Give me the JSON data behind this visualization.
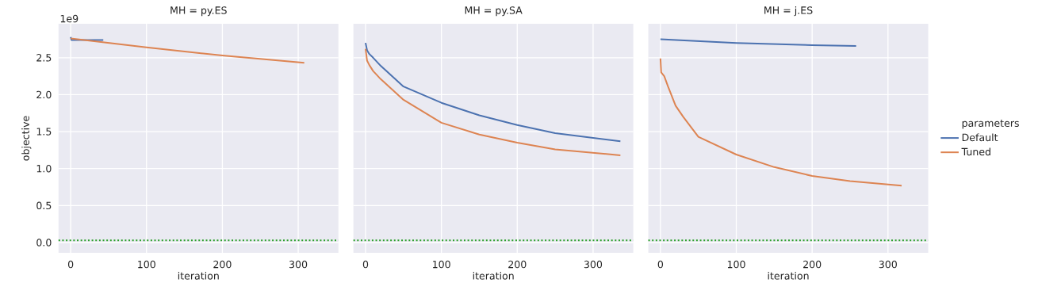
{
  "chart_data": [
    {
      "type": "line",
      "title": "MH  = py.ES",
      "xlabel": "iteration",
      "ylabel": "objective",
      "annotations": [
        "1e9"
      ],
      "grid": true,
      "legend": false,
      "xlim": [
        -16,
        353
      ],
      "xticks": [
        0,
        100,
        200,
        300
      ],
      "ylim": [
        -0.14,
        2.96
      ],
      "yticks": [
        {
          "value": 0,
          "label": "0.0"
        },
        {
          "value": 0.5,
          "label": "0.5"
        },
        {
          "value": 1,
          "label": "1.0"
        },
        {
          "value": 1.5,
          "label": "1.5"
        },
        {
          "value": 2,
          "label": "2.0"
        },
        {
          "value": 2.5,
          "label": "2.5"
        }
      ],
      "ref_lines": [
        {
          "axis": "y",
          "value": 0.03,
          "color": "#2ca02c",
          "line_style": "dotted"
        }
      ],
      "series": [
        {
          "color": "#4c72b0",
          "x": [
            0,
            1,
            43
          ],
          "values": [
            2.78,
            2.74,
            2.74
          ]
        },
        {
          "color": "#dd8452",
          "x": [
            0,
            100,
            200,
            308
          ],
          "values": [
            2.76,
            2.64,
            2.53,
            2.43
          ]
        }
      ]
    },
    {
      "type": "line",
      "title": "MH  = py.SA",
      "xlabel": "iteration",
      "grid": true,
      "legend": false,
      "tick_labels": "x",
      "xlim": [
        -16,
        353
      ],
      "xticks": [
        0,
        100,
        200,
        300
      ],
      "ylim": [
        -0.14,
        2.96
      ],
      "yticks": [
        0,
        0.5,
        1,
        1.5,
        2,
        2.5
      ],
      "ref_lines": [
        {
          "axis": "y",
          "value": 0.03,
          "color": "#2ca02c",
          "line_style": "dotted"
        }
      ],
      "series": [
        {
          "color": "#4c72b0",
          "x": [
            0,
            2,
            5,
            10,
            20,
            50,
            100,
            150,
            200,
            250,
            336
          ],
          "values": [
            2.7,
            2.6,
            2.55,
            2.5,
            2.39,
            2.11,
            1.89,
            1.72,
            1.59,
            1.48,
            1.37
          ]
        },
        {
          "color": "#dd8452",
          "x": [
            0,
            2,
            5,
            10,
            20,
            50,
            100,
            150,
            200,
            250,
            336
          ],
          "values": [
            2.62,
            2.46,
            2.4,
            2.32,
            2.21,
            1.93,
            1.62,
            1.46,
            1.35,
            1.26,
            1.18
          ]
        }
      ]
    },
    {
      "type": "line",
      "title": "MH  = j.ES",
      "xlabel": "iteration",
      "grid": true,
      "legend": "right",
      "legend_title": "parameters",
      "tick_labels": "x",
      "xlim": [
        -16,
        353
      ],
      "xticks": [
        0,
        100,
        200,
        300
      ],
      "ylim": [
        -0.14,
        2.96
      ],
      "yticks": [
        0,
        0.5,
        1,
        1.5,
        2,
        2.5
      ],
      "ref_lines": [
        {
          "axis": "y",
          "value": 0.03,
          "color": "#2ca02c",
          "line_style": "dotted"
        }
      ],
      "series": [
        {
          "name": "Default",
          "color": "#4c72b0",
          "x": [
            0,
            100,
            200,
            258
          ],
          "values": [
            2.75,
            2.7,
            2.67,
            2.66
          ]
        },
        {
          "name": "Tuned",
          "color": "#dd8452",
          "x": [
            0,
            1,
            5,
            10,
            20,
            30,
            50,
            100,
            150,
            200,
            250,
            318
          ],
          "values": [
            2.49,
            2.3,
            2.25,
            2.11,
            1.85,
            1.7,
            1.43,
            1.19,
            1.02,
            0.9,
            0.83,
            0.77
          ]
        }
      ]
    }
  ]
}
